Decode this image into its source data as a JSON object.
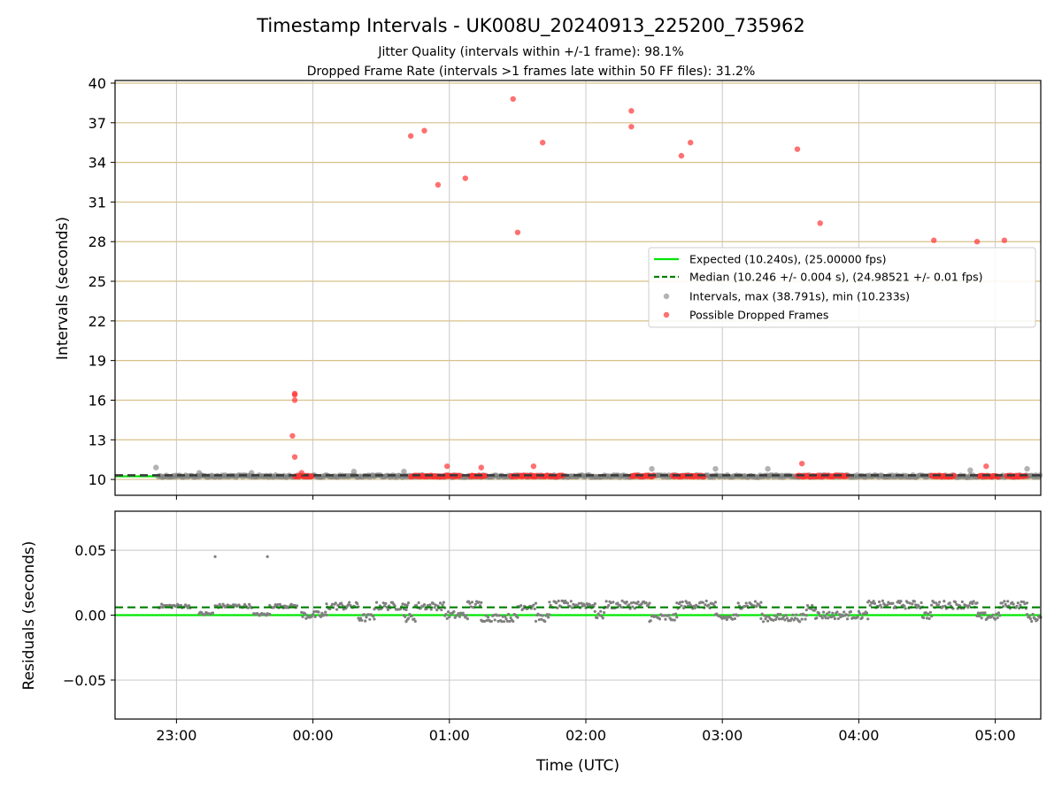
{
  "title": "Timestamp Intervals - UK008U_20240913_225200_735962",
  "subtitle_1": "Jitter Quality (intervals within +/-1 frame): 98.1%",
  "subtitle_2": "Dropped Frame Rate (intervals >1 frames late within 50 FF files): 31.2%",
  "colors": {
    "expected": "#00e600",
    "median": "#007f00",
    "intervals": "#808080",
    "dropped": "#ff3333",
    "hgrid_top": "#d8c088",
    "grid": "#c8c8c8"
  },
  "chart_data": [
    {
      "type": "scatter",
      "ylabel": "Intervals (seconds)",
      "xlim": [
        "22:33",
        "05:20"
      ],
      "ylim": [
        8.8,
        40.2
      ],
      "yticks": [
        10,
        13,
        16,
        19,
        22,
        25,
        28,
        31,
        34,
        37,
        40
      ],
      "grid": true,
      "legend_position": "center-right",
      "legend": [
        "Expected (10.240s), (25.00000 fps)",
        "Median (10.246 +/- 0.004 s), (24.98521 +/- 0.01 fps)",
        "Intervals, max (38.791s), min (10.233s)",
        "Possible Dropped Frames"
      ],
      "expected_value": 10.24,
      "median_value": 10.246,
      "intervals_band": {
        "start": "22:52",
        "end": "05:20",
        "value": 10.246
      },
      "intervals_outliers": [
        {
          "x": "22:51",
          "y": 10.9
        },
        {
          "x": "23:10",
          "y": 10.5
        },
        {
          "x": "23:33",
          "y": 10.5
        },
        {
          "x": "00:18",
          "y": 10.6
        },
        {
          "x": "00:40",
          "y": 10.6
        },
        {
          "x": "02:29",
          "y": 10.8
        },
        {
          "x": "02:57",
          "y": 10.8
        },
        {
          "x": "03:20",
          "y": 10.8
        },
        {
          "x": "04:49",
          "y": 10.7
        },
        {
          "x": "05:14",
          "y": 10.8
        }
      ],
      "dropped_clusters": [
        {
          "start": "23:52",
          "end": "24:00"
        },
        {
          "start": "00:43",
          "end": "01:05"
        },
        {
          "start": "01:09",
          "end": "01:16"
        },
        {
          "start": "01:27",
          "end": "01:39"
        },
        {
          "start": "01:40",
          "end": "01:50"
        },
        {
          "start": "02:20",
          "end": "02:30"
        },
        {
          "start": "02:38",
          "end": "02:52"
        },
        {
          "start": "03:33",
          "end": "03:45"
        },
        {
          "start": "03:45",
          "end": "03:55"
        },
        {
          "start": "04:32",
          "end": "04:42"
        },
        {
          "start": "04:53",
          "end": "05:02"
        },
        {
          "start": "05:05",
          "end": "05:14"
        }
      ],
      "dropped_points": [
        {
          "x": "23:52",
          "y": 16.5
        },
        {
          "x": "23:52",
          "y": 16.4
        },
        {
          "x": "23:52",
          "y": 16.0
        },
        {
          "x": "23:51",
          "y": 13.3
        },
        {
          "x": "23:52",
          "y": 11.7
        },
        {
          "x": "23:55",
          "y": 10.5
        },
        {
          "x": "00:43",
          "y": 36.0
        },
        {
          "x": "00:49",
          "y": 36.4
        },
        {
          "x": "00:55",
          "y": 32.3
        },
        {
          "x": "00:59",
          "y": 11.0
        },
        {
          "x": "01:07",
          "y": 32.8
        },
        {
          "x": "01:14",
          "y": 10.9
        },
        {
          "x": "01:28",
          "y": 38.8
        },
        {
          "x": "01:30",
          "y": 28.7
        },
        {
          "x": "01:37",
          "y": 11.0
        },
        {
          "x": "01:41",
          "y": 35.5
        },
        {
          "x": "02:20",
          "y": 37.9
        },
        {
          "x": "02:20",
          "y": 36.7
        },
        {
          "x": "02:42",
          "y": 34.5
        },
        {
          "x": "02:46",
          "y": 35.5
        },
        {
          "x": "03:33",
          "y": 35.0
        },
        {
          "x": "03:35",
          "y": 11.2
        },
        {
          "x": "03:43",
          "y": 29.4
        },
        {
          "x": "04:33",
          "y": 28.1
        },
        {
          "x": "04:52",
          "y": 28.0
        },
        {
          "x": "04:56",
          "y": 11.0
        },
        {
          "x": "05:04",
          "y": 28.1
        }
      ]
    },
    {
      "type": "scatter",
      "xlabel": "Time (UTC)",
      "ylabel": "Residuals (seconds)",
      "xlim": [
        "22:33",
        "05:20"
      ],
      "ylim": [
        -0.08,
        0.08
      ],
      "yticks": [
        0.05,
        0.0,
        -0.05
      ],
      "ytick_labels": [
        "0.05",
        "0.00",
        "−0.05"
      ],
      "xticks": [
        "23:00",
        "00:00",
        "01:00",
        "02:00",
        "03:00",
        "04:00",
        "05:00"
      ],
      "grid": true,
      "expected_value": 0.0,
      "median_value": 0.006,
      "residual_outliers": [
        {
          "x": "23:17",
          "y": 0.045
        },
        {
          "x": "23:40",
          "y": 0.045
        }
      ],
      "residual_segments": [
        {
          "start": "22:52",
          "end": "23:06",
          "level": 0.007,
          "spread": 0.0015
        },
        {
          "start": "23:10",
          "end": "23:16",
          "level": 0.001,
          "spread": 0.0015
        },
        {
          "start": "23:17",
          "end": "23:33",
          "level": 0.007,
          "spread": 0.0015
        },
        {
          "start": "23:34",
          "end": "23:41",
          "level": 0.0005,
          "spread": 0.001
        },
        {
          "start": "23:41",
          "end": "23:53",
          "level": 0.007,
          "spread": 0.0015
        },
        {
          "start": "23:55",
          "end": "00:06",
          "level": 0.0,
          "spread": 0.003
        },
        {
          "start": "00:06",
          "end": "00:20",
          "level": 0.007,
          "spread": 0.003
        },
        {
          "start": "00:20",
          "end": "00:27",
          "level": -0.002,
          "spread": 0.003
        },
        {
          "start": "00:27",
          "end": "00:42",
          "level": 0.007,
          "spread": 0.003
        },
        {
          "start": "00:40",
          "end": "00:45",
          "level": -0.002,
          "spread": 0.003
        },
        {
          "start": "00:45",
          "end": "00:58",
          "level": 0.007,
          "spread": 0.003
        },
        {
          "start": "00:58",
          "end": "01:08",
          "level": 0.0,
          "spread": 0.003
        },
        {
          "start": "01:08",
          "end": "01:14",
          "level": 0.008,
          "spread": 0.003
        },
        {
          "start": "01:14",
          "end": "01:30",
          "level": -0.002,
          "spread": 0.003
        },
        {
          "start": "01:30",
          "end": "01:38",
          "level": 0.007,
          "spread": 0.003
        },
        {
          "start": "01:38",
          "end": "01:44",
          "level": -0.002,
          "spread": 0.003
        },
        {
          "start": "01:44",
          "end": "02:04",
          "level": 0.008,
          "spread": 0.003
        },
        {
          "start": "02:04",
          "end": "02:08",
          "level": 0.0,
          "spread": 0.003
        },
        {
          "start": "02:08",
          "end": "02:28",
          "level": 0.008,
          "spread": 0.003
        },
        {
          "start": "02:28",
          "end": "02:40",
          "level": -0.002,
          "spread": 0.003
        },
        {
          "start": "02:40",
          "end": "02:57",
          "level": 0.008,
          "spread": 0.003
        },
        {
          "start": "02:57",
          "end": "03:07",
          "level": -0.002,
          "spread": 0.003
        },
        {
          "start": "03:07",
          "end": "03:17",
          "level": 0.008,
          "spread": 0.003
        },
        {
          "start": "03:17",
          "end": "03:37",
          "level": -0.002,
          "spread": 0.003
        },
        {
          "start": "03:37",
          "end": "03:41",
          "level": 0.006,
          "spread": 0.003
        },
        {
          "start": "03:41",
          "end": "04:04",
          "level": 0.0,
          "spread": 0.003
        },
        {
          "start": "04:04",
          "end": "04:28",
          "level": 0.008,
          "spread": 0.003
        },
        {
          "start": "04:28",
          "end": "04:32",
          "level": 0.0,
          "spread": 0.003
        },
        {
          "start": "04:32",
          "end": "04:52",
          "level": 0.008,
          "spread": 0.003
        },
        {
          "start": "04:52",
          "end": "05:02",
          "level": -0.001,
          "spread": 0.003
        },
        {
          "start": "05:02",
          "end": "05:14",
          "level": 0.008,
          "spread": 0.003
        },
        {
          "start": "05:14",
          "end": "05:20",
          "level": -0.002,
          "spread": 0.003
        }
      ]
    }
  ]
}
